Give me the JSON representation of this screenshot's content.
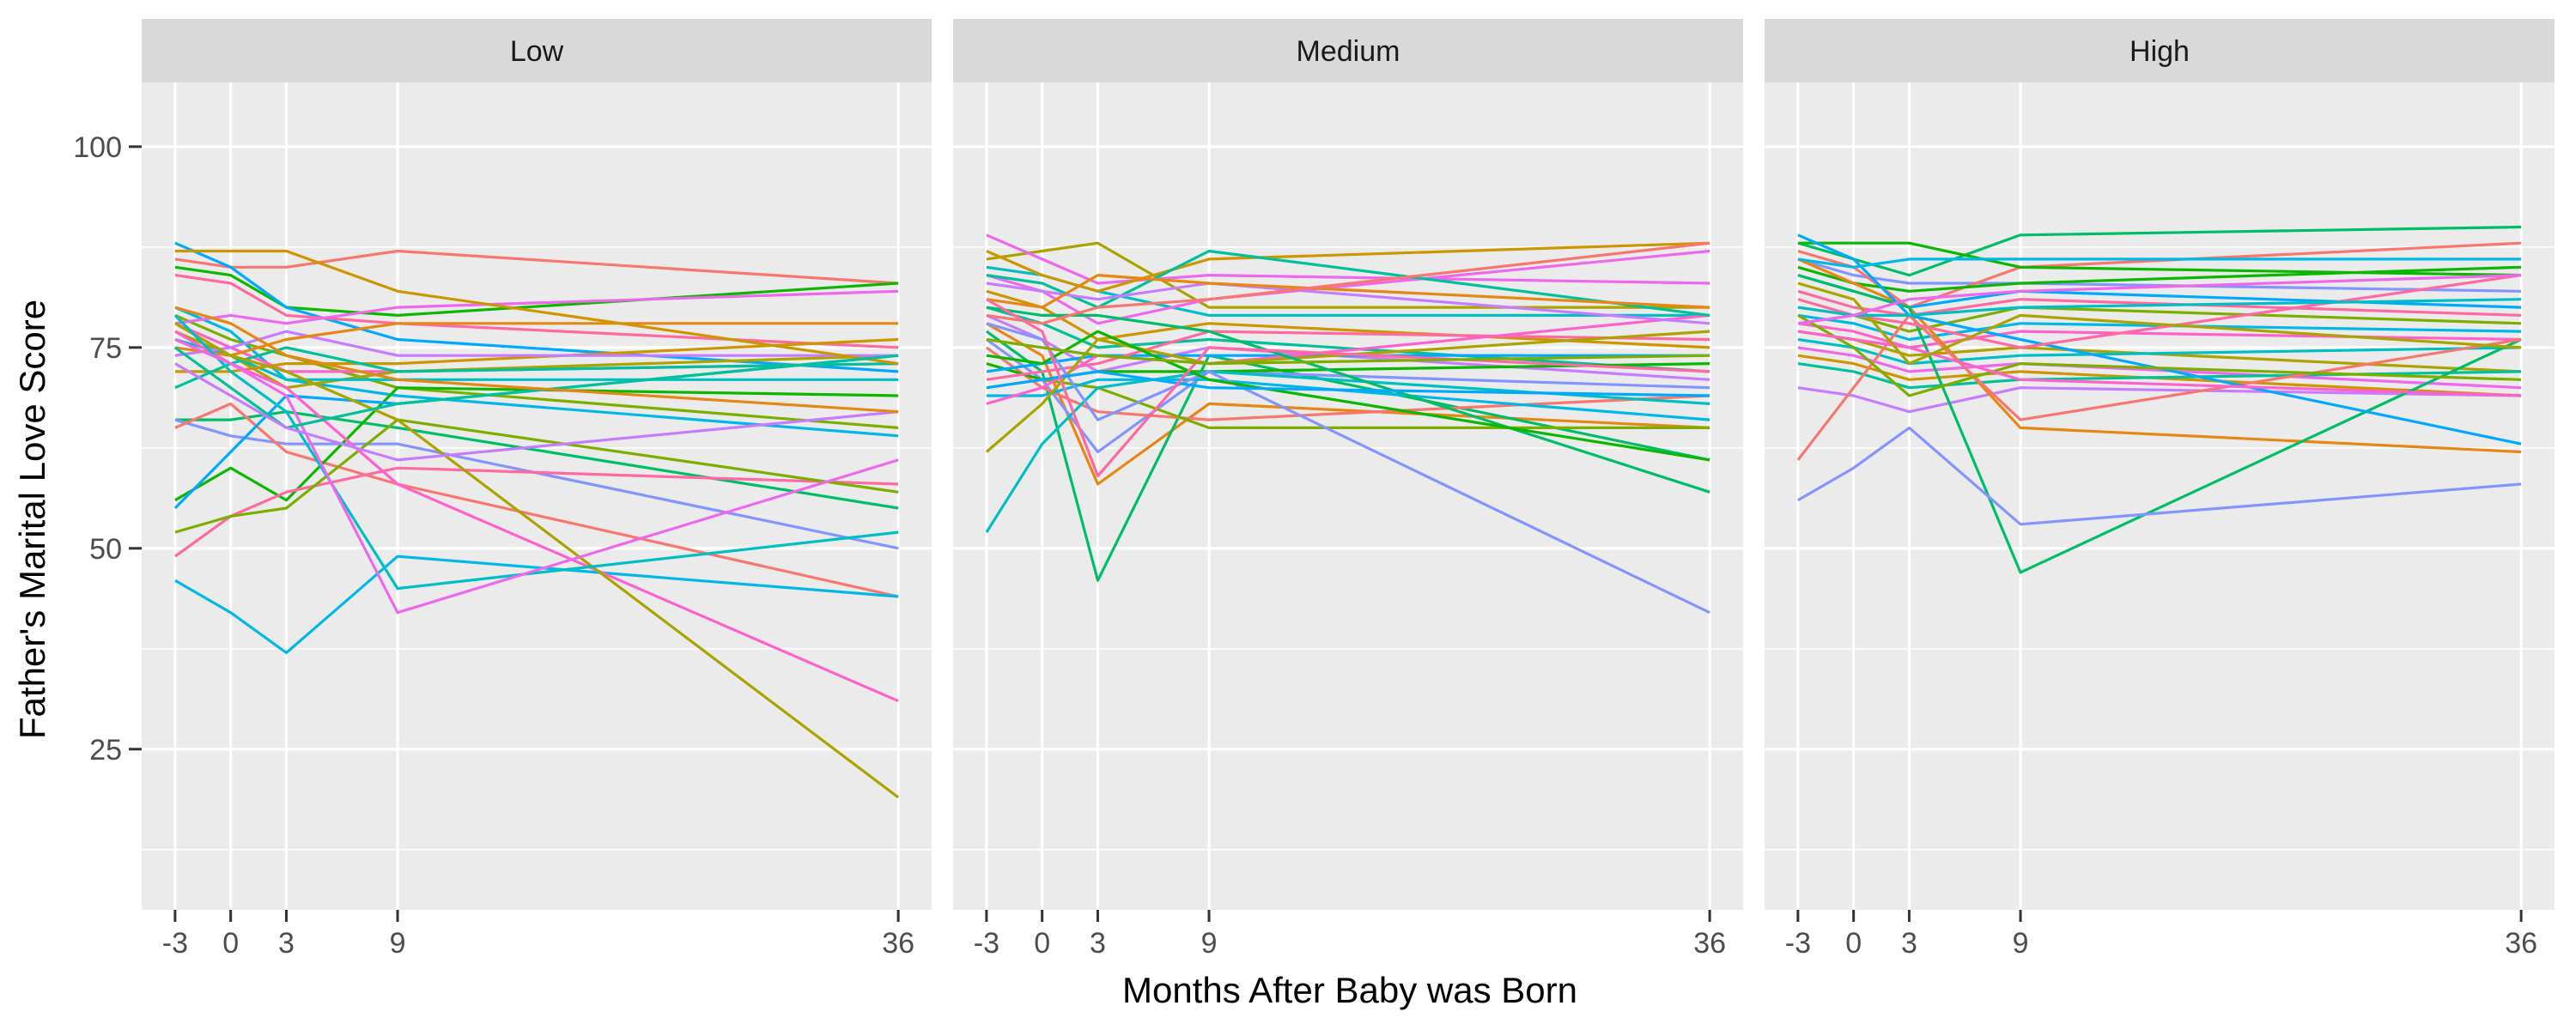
{
  "chart_data": {
    "type": "line",
    "facet_by": "panel",
    "xlabel": "Months After Baby was Born",
    "ylabel": "Father's Marital Love Score",
    "x": [
      -3,
      0,
      3,
      9,
      36
    ],
    "x_tick_labels": [
      "-3",
      "0",
      "3",
      "9",
      "36"
    ],
    "y_ticks": [
      25,
      50,
      75,
      100
    ],
    "xlim": [
      -4.8,
      37.8
    ],
    "ylim": [
      5,
      108
    ],
    "grid": "on",
    "legend": "none",
    "colors": [
      "#F8766D",
      "#E68613",
      "#CD9600",
      "#ABA300",
      "#7CAE00",
      "#0CB702",
      "#00BE67",
      "#00C19A",
      "#00BFC4",
      "#00B8E7",
      "#00A9FF",
      "#8494FF",
      "#C77CFF",
      "#ED68ED",
      "#FF61CC",
      "#FF68A1"
    ],
    "panels": [
      {
        "label": "Low",
        "series": [
          {
            "values": [
              86,
              85,
              85,
              87,
              83
            ]
          },
          {
            "values": [
              85,
              84,
              80,
              79,
              83
            ]
          },
          {
            "values": [
              88,
              85,
              80,
              76,
              72
            ]
          },
          {
            "values": [
              84,
              83,
              79,
              78,
              75
            ]
          },
          {
            "values": [
              79,
              76,
              74,
              70,
              65
            ]
          },
          {
            "values": [
              80,
              77,
              71,
              69,
              64
            ]
          },
          {
            "values": [
              78,
              75,
              72,
              72,
              73
            ]
          },
          {
            "values": [
              77,
              74,
              70,
              72,
              74
            ]
          },
          {
            "values": [
              76,
              74,
              71,
              71,
              71
            ]
          },
          {
            "values": [
              78,
              79,
              78,
              80,
              82
            ]
          },
          {
            "values": [
              72,
              72,
              73,
              73,
              76
            ]
          },
          {
            "values": [
              70,
              73,
              75,
              72,
              73
            ]
          },
          {
            "values": [
              74,
              75,
              77,
              74,
              74
            ]
          },
          {
            "values": [
              75,
              74,
              76,
              78,
              78
            ]
          },
          {
            "values": [
              66,
              66,
              67,
              65,
              55
            ]
          },
          {
            "values": [
              66,
              64,
              63,
              63,
              50
            ]
          },
          {
            "values": [
              65,
              68,
              62,
              58,
              44
            ]
          },
          {
            "values": [
              56,
              60,
              56,
              70,
              69
            ]
          },
          {
            "values": [
              55,
              62,
              69,
              68,
              74
            ]
          },
          {
            "values": [
              49,
              54,
              57,
              60,
              58
            ]
          },
          {
            "values": [
              52,
              54,
              55,
              66,
              57
            ]
          },
          {
            "values": [
              46,
              42,
              37,
              49,
              44
            ]
          },
          {
            "values": [
              77,
              73,
              70,
              58,
              31
            ]
          },
          {
            "values": [
              78,
              74,
              72,
              66,
              19
            ]
          },
          {
            "values": [
              79,
              72,
              67,
              45,
              52
            ]
          },
          {
            "values": [
              76,
              73,
              69,
              42,
              61
            ]
          },
          {
            "values": [
              87,
              87,
              87,
              82,
              73
            ]
          },
          {
            "values": [
              75,
              70,
              65,
              68,
              74
            ]
          },
          {
            "values": [
              73,
              69,
              65,
              61,
              67
            ]
          },
          {
            "values": [
              80,
              78,
              74,
              71,
              67
            ]
          }
        ]
      },
      {
        "label": "Medium",
        "series": [
          {
            "values": [
              86,
              87,
              88,
              80,
              80
            ]
          },
          {
            "values": [
              85,
              84,
              82,
              79,
              79
            ]
          },
          {
            "values": [
              84,
              82,
              78,
              81,
              87
            ]
          },
          {
            "values": [
              82,
              80,
              76,
              78,
              75
            ]
          },
          {
            "values": [
              80,
              78,
              75,
              76,
              72
            ]
          },
          {
            "values": [
              79,
              76,
              72,
              75,
              71
            ]
          },
          {
            "values": [
              78,
              74,
              58,
              68,
              65
            ]
          },
          {
            "values": [
              77,
              72,
              46,
              74,
              61
            ]
          },
          {
            "values": [
              76,
              71,
              62,
              72,
              70
            ]
          },
          {
            "values": [
              75,
              70,
              67,
              66,
              69
            ]
          },
          {
            "values": [
              73,
              71,
              72,
              72,
              73
            ]
          },
          {
            "values": [
              72,
              73,
              74,
              74,
              74
            ]
          },
          {
            "values": [
              71,
              72,
              73,
              77,
              76
            ]
          },
          {
            "values": [
              70,
              71,
              70,
              65,
              65
            ]
          },
          {
            "values": [
              69,
              69,
              71,
              71,
              66
            ]
          },
          {
            "values": [
              68,
              70,
              74,
              73,
              79
            ]
          },
          {
            "values": [
              62,
              68,
              76,
              73,
              77
            ]
          },
          {
            "values": [
              52,
              63,
              70,
              72,
              68
            ]
          },
          {
            "values": [
              89,
              86,
              83,
              84,
              83
            ]
          },
          {
            "values": [
              87,
              84,
              82,
              86,
              88
            ]
          },
          {
            "values": [
              84,
              83,
              80,
              87,
              79
            ]
          },
          {
            "values": [
              83,
              82,
              81,
              83,
              78
            ]
          },
          {
            "values": [
              81,
              80,
              84,
              83,
              80
            ]
          },
          {
            "values": [
              80,
              79,
              79,
              77,
              57
            ]
          },
          {
            "values": [
              78,
              76,
              66,
              72,
              42
            ]
          },
          {
            "values": [
              79,
              78,
              80,
              81,
              88
            ]
          },
          {
            "values": [
              74,
              73,
              77,
              71,
              61
            ]
          },
          {
            "values": [
              70,
              71,
              72,
              70,
              69
            ]
          },
          {
            "values": [
              81,
              77,
              59,
              75,
              72
            ]
          },
          {
            "values": [
              76,
              75,
              74,
              73,
              74
            ]
          }
        ]
      },
      {
        "label": "High",
        "series": [
          {
            "values": [
              88,
              86,
              84,
              89,
              90
            ]
          },
          {
            "values": [
              86,
              84,
              83,
              83,
              82
            ]
          },
          {
            "values": [
              87,
              85,
              80,
              85,
              88
            ]
          },
          {
            "values": [
              85,
              83,
              82,
              83,
              85
            ]
          },
          {
            "values": [
              84,
              82,
              80,
              82,
              80
            ]
          },
          {
            "values": [
              82,
              80,
              79,
              81,
              79
            ]
          },
          {
            "values": [
              80,
              79,
              77,
              80,
              78
            ]
          },
          {
            "values": [
              79,
              78,
              76,
              78,
              77
            ]
          },
          {
            "values": [
              78,
              77,
              75,
              77,
              76
            ]
          },
          {
            "values": [
              77,
              76,
              74,
              75,
              72
            ]
          },
          {
            "values": [
              76,
              75,
              73,
              74,
              75
            ]
          },
          {
            "values": [
              75,
              74,
              72,
              73,
              70
            ]
          },
          {
            "values": [
              74,
              73,
              71,
              72,
              69
            ]
          },
          {
            "values": [
              73,
              72,
              70,
              71,
              72
            ]
          },
          {
            "values": [
              70,
              69,
              67,
              70,
              69
            ]
          },
          {
            "values": [
              86,
              83,
              80,
              65,
              62
            ]
          },
          {
            "values": [
              84,
              82,
              80,
              47,
              76
            ]
          },
          {
            "values": [
              56,
              60,
              65,
              53,
              58
            ]
          },
          {
            "values": [
              61,
              70,
              79,
              66,
              76
            ]
          },
          {
            "values": [
              88,
              88,
              88,
              85,
              84
            ]
          },
          {
            "values": [
              89,
              86,
              79,
              76,
              63
            ]
          },
          {
            "values": [
              81,
              79,
              78,
              75,
              84
            ]
          },
          {
            "values": [
              79,
              75,
              69,
              73,
              71
            ]
          },
          {
            "values": [
              86,
              85,
              86,
              86,
              86
            ]
          },
          {
            "values": [
              77,
              76,
              75,
              71,
              69
            ]
          },
          {
            "values": [
              83,
              81,
              73,
              79,
              75
            ]
          },
          {
            "values": [
              80,
              79,
              79,
              80,
              81
            ]
          },
          {
            "values": [
              78,
              79,
              81,
              82,
              84
            ]
          }
        ]
      }
    ]
  }
}
